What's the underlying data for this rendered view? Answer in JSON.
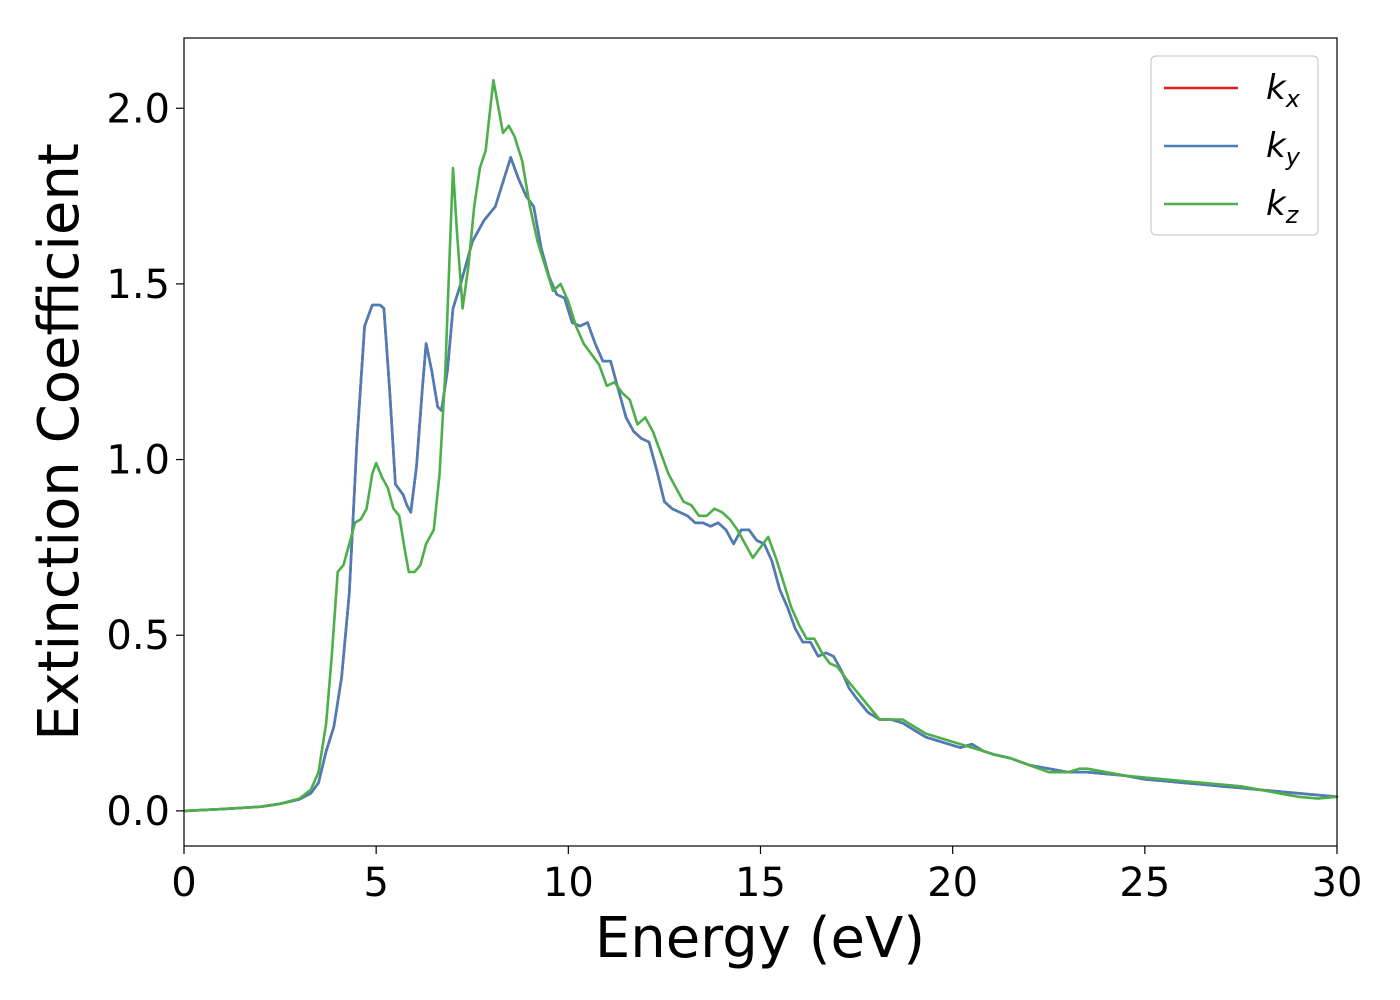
{
  "chart_data": {
    "type": "line",
    "xlabel": "Energy (eV)",
    "ylabel": "Extinction Coefficient",
    "xlim": [
      0,
      30
    ],
    "ylim": [
      -0.1,
      2.2
    ],
    "xticks": [
      0,
      5,
      10,
      15,
      20,
      25,
      30
    ],
    "yticks": [
      0.0,
      0.5,
      1.0,
      1.5,
      2.0
    ],
    "xtick_labels": [
      "0",
      "5",
      "10",
      "15",
      "20",
      "25",
      "30"
    ],
    "ytick_labels": [
      "0.0",
      "0.5",
      "1.0",
      "1.5",
      "2.0"
    ],
    "grid": false,
    "legend_position": "top-right",
    "series": [
      {
        "name": "k_x",
        "legend_main": "k",
        "legend_sub": "x",
        "color": "#e41a1c",
        "x": [
          0,
          1,
          2,
          2.5,
          3,
          3.3,
          3.5,
          3.7,
          3.9,
          4.1,
          4.3,
          4.5,
          4.7,
          4.9,
          5.1,
          5.2,
          5.35,
          5.5,
          5.7,
          5.8,
          5.9,
          6.05,
          6.2,
          6.3,
          6.45,
          6.6,
          6.7,
          6.85,
          7.0,
          7.2,
          7.5,
          7.8,
          8.1,
          8.3,
          8.5,
          8.7,
          8.9,
          9.1,
          9.3,
          9.5,
          9.7,
          9.9,
          10.1,
          10.3,
          10.5,
          10.7,
          10.9,
          11.1,
          11.3,
          11.5,
          11.7,
          11.9,
          12.1,
          12.3,
          12.5,
          12.7,
          12.9,
          13.1,
          13.3,
          13.5,
          13.7,
          13.9,
          14.1,
          14.3,
          14.5,
          14.7,
          14.9,
          15.1,
          15.3,
          15.5,
          15.7,
          15.9,
          16.1,
          16.3,
          16.5,
          16.7,
          16.9,
          17.1,
          17.3,
          17.5,
          17.8,
          18.1,
          18.4,
          18.7,
          19.0,
          19.3,
          19.6,
          19.9,
          20.2,
          20.5,
          20.8,
          21.1,
          21.5,
          22.0,
          22.5,
          23.0,
          23.5,
          24.0,
          24.5,
          25.0,
          25.5,
          26.0,
          26.5,
          27.0,
          27.5,
          28.0,
          28.5,
          29.0,
          29.5,
          30.0
        ],
        "y": [
          0.0,
          0.005,
          0.012,
          0.02,
          0.033,
          0.05,
          0.08,
          0.17,
          0.24,
          0.38,
          0.62,
          1.05,
          1.38,
          1.44,
          1.44,
          1.43,
          1.2,
          0.93,
          0.9,
          0.87,
          0.85,
          0.98,
          1.2,
          1.33,
          1.25,
          1.15,
          1.14,
          1.25,
          1.43,
          1.5,
          1.62,
          1.68,
          1.72,
          1.79,
          1.86,
          1.8,
          1.75,
          1.72,
          1.6,
          1.52,
          1.47,
          1.46,
          1.39,
          1.38,
          1.39,
          1.33,
          1.28,
          1.28,
          1.2,
          1.12,
          1.08,
          1.06,
          1.05,
          0.97,
          0.88,
          0.86,
          0.85,
          0.84,
          0.82,
          0.82,
          0.81,
          0.82,
          0.8,
          0.76,
          0.8,
          0.8,
          0.77,
          0.76,
          0.71,
          0.63,
          0.58,
          0.52,
          0.48,
          0.48,
          0.44,
          0.45,
          0.44,
          0.4,
          0.35,
          0.32,
          0.28,
          0.26,
          0.26,
          0.25,
          0.23,
          0.21,
          0.2,
          0.19,
          0.18,
          0.19,
          0.17,
          0.16,
          0.15,
          0.13,
          0.12,
          0.11,
          0.11,
          0.105,
          0.1,
          0.09,
          0.085,
          0.08,
          0.075,
          0.07,
          0.065,
          0.06,
          0.055,
          0.05,
          0.045,
          0.04
        ]
      },
      {
        "name": "k_y",
        "legend_main": "k",
        "legend_sub": "y",
        "color": "#4a7eb8",
        "x": [
          0,
          1,
          2,
          2.5,
          3,
          3.3,
          3.5,
          3.7,
          3.9,
          4.1,
          4.3,
          4.5,
          4.7,
          4.9,
          5.1,
          5.2,
          5.35,
          5.5,
          5.7,
          5.8,
          5.9,
          6.05,
          6.2,
          6.3,
          6.45,
          6.6,
          6.7,
          6.85,
          7.0,
          7.2,
          7.5,
          7.8,
          8.1,
          8.3,
          8.5,
          8.7,
          8.9,
          9.1,
          9.3,
          9.5,
          9.7,
          9.9,
          10.1,
          10.3,
          10.5,
          10.7,
          10.9,
          11.1,
          11.3,
          11.5,
          11.7,
          11.9,
          12.1,
          12.3,
          12.5,
          12.7,
          12.9,
          13.1,
          13.3,
          13.5,
          13.7,
          13.9,
          14.1,
          14.3,
          14.5,
          14.7,
          14.9,
          15.1,
          15.3,
          15.5,
          15.7,
          15.9,
          16.1,
          16.3,
          16.5,
          16.7,
          16.9,
          17.1,
          17.3,
          17.5,
          17.8,
          18.1,
          18.4,
          18.7,
          19.0,
          19.3,
          19.6,
          19.9,
          20.2,
          20.5,
          20.8,
          21.1,
          21.5,
          22.0,
          22.5,
          23.0,
          23.5,
          24.0,
          24.5,
          25.0,
          25.5,
          26.0,
          26.5,
          27.0,
          27.5,
          28.0,
          28.5,
          29.0,
          29.5,
          30.0
        ],
        "y": [
          0.0,
          0.005,
          0.012,
          0.02,
          0.033,
          0.05,
          0.08,
          0.17,
          0.24,
          0.38,
          0.62,
          1.05,
          1.38,
          1.44,
          1.44,
          1.43,
          1.2,
          0.93,
          0.9,
          0.87,
          0.85,
          0.98,
          1.2,
          1.33,
          1.25,
          1.15,
          1.14,
          1.25,
          1.43,
          1.5,
          1.62,
          1.68,
          1.72,
          1.79,
          1.86,
          1.8,
          1.75,
          1.72,
          1.6,
          1.52,
          1.47,
          1.46,
          1.39,
          1.38,
          1.39,
          1.33,
          1.28,
          1.28,
          1.2,
          1.12,
          1.08,
          1.06,
          1.05,
          0.97,
          0.88,
          0.86,
          0.85,
          0.84,
          0.82,
          0.82,
          0.81,
          0.82,
          0.8,
          0.76,
          0.8,
          0.8,
          0.77,
          0.76,
          0.71,
          0.63,
          0.58,
          0.52,
          0.48,
          0.48,
          0.44,
          0.45,
          0.44,
          0.4,
          0.35,
          0.32,
          0.28,
          0.26,
          0.26,
          0.25,
          0.23,
          0.21,
          0.2,
          0.19,
          0.18,
          0.19,
          0.17,
          0.16,
          0.15,
          0.13,
          0.12,
          0.11,
          0.11,
          0.105,
          0.1,
          0.09,
          0.085,
          0.08,
          0.075,
          0.07,
          0.065,
          0.06,
          0.055,
          0.05,
          0.045,
          0.04
        ]
      },
      {
        "name": "k_z",
        "legend_main": "k",
        "legend_sub": "z",
        "color": "#4daf4a",
        "x": [
          0,
          1,
          2,
          2.5,
          3,
          3.3,
          3.5,
          3.7,
          3.85,
          4.0,
          4.15,
          4.3,
          4.45,
          4.6,
          4.75,
          4.9,
          5.0,
          5.15,
          5.3,
          5.45,
          5.6,
          5.75,
          5.85,
          6.0,
          6.15,
          6.3,
          6.5,
          6.65,
          6.8,
          6.9,
          7.0,
          7.1,
          7.25,
          7.4,
          7.55,
          7.7,
          7.85,
          7.95,
          8.05,
          8.15,
          8.3,
          8.45,
          8.6,
          8.8,
          9.0,
          9.2,
          9.4,
          9.6,
          9.8,
          10.0,
          10.2,
          10.4,
          10.6,
          10.8,
          11.0,
          11.2,
          11.4,
          11.6,
          11.8,
          12.0,
          12.2,
          12.4,
          12.6,
          12.8,
          13.0,
          13.2,
          13.4,
          13.6,
          13.8,
          14.0,
          14.2,
          14.4,
          14.6,
          14.8,
          15.0,
          15.2,
          15.4,
          15.6,
          15.8,
          16.0,
          16.2,
          16.4,
          16.6,
          16.8,
          17.0,
          17.2,
          17.5,
          17.8,
          18.1,
          18.4,
          18.7,
          19.0,
          19.3,
          19.6,
          19.9,
          20.2,
          20.5,
          20.8,
          21.1,
          21.5,
          22.0,
          22.5,
          23.0,
          23.3,
          23.5,
          24.0,
          24.5,
          25.0,
          25.5,
          26.0,
          26.5,
          27.0,
          27.5,
          28.0,
          28.5,
          29.0,
          29.5,
          30.0
        ],
        "y": [
          0.0,
          0.005,
          0.012,
          0.02,
          0.035,
          0.06,
          0.11,
          0.25,
          0.45,
          0.68,
          0.7,
          0.76,
          0.82,
          0.83,
          0.86,
          0.96,
          0.99,
          0.95,
          0.92,
          0.86,
          0.84,
          0.74,
          0.68,
          0.68,
          0.7,
          0.76,
          0.8,
          0.96,
          1.25,
          1.55,
          1.83,
          1.65,
          1.43,
          1.55,
          1.72,
          1.83,
          1.88,
          1.98,
          2.08,
          2.02,
          1.93,
          1.95,
          1.92,
          1.85,
          1.72,
          1.62,
          1.55,
          1.48,
          1.5,
          1.45,
          1.38,
          1.33,
          1.3,
          1.27,
          1.21,
          1.22,
          1.19,
          1.17,
          1.1,
          1.12,
          1.08,
          1.02,
          0.96,
          0.92,
          0.88,
          0.87,
          0.84,
          0.84,
          0.86,
          0.85,
          0.83,
          0.8,
          0.76,
          0.72,
          0.75,
          0.78,
          0.72,
          0.65,
          0.58,
          0.53,
          0.49,
          0.49,
          0.45,
          0.42,
          0.41,
          0.38,
          0.34,
          0.3,
          0.26,
          0.26,
          0.26,
          0.24,
          0.22,
          0.21,
          0.2,
          0.19,
          0.18,
          0.17,
          0.16,
          0.15,
          0.13,
          0.11,
          0.11,
          0.12,
          0.12,
          0.11,
          0.1,
          0.095,
          0.09,
          0.085,
          0.08,
          0.075,
          0.07,
          0.06,
          0.05,
          0.04,
          0.035,
          0.04
        ]
      }
    ]
  }
}
